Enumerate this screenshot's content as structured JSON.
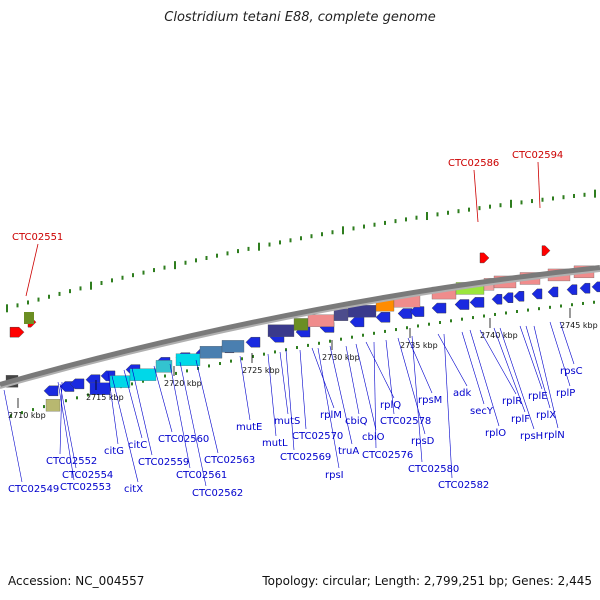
{
  "title": "Clostridium tetani E88, complete genome",
  "accession": "Accession: NC_004557",
  "summary": "Topology: circular; Length: 2,799,251 bp; Genes: 2,445",
  "colors": {
    "backbone": "#808080",
    "tick": "#2e7d1e",
    "highlight": "#cc0000",
    "gene_label": "#0000cc",
    "forward_blue": "#1a2ae0",
    "cyan": "#00d8e8",
    "salmon": "#f08c8c",
    "steel": "#4a7fb0",
    "navy": "#3a3a8c",
    "olive": "#6b8e23",
    "orange": "#ff8c00",
    "lime": "#9be63c"
  },
  "scale_labels": [
    "2710 kbp",
    "2715 kbp",
    "2720 kbp",
    "2725 kbp",
    "2730 kbp",
    "2735 kbp",
    "2740 kbp",
    "2745 kbp"
  ],
  "highlighted_labels": [
    "CTC02551",
    "CTC02586",
    "CTC02594"
  ],
  "gene_labels": [
    "CTC02549",
    "CTC02552",
    "CTC02554",
    "CTC02553",
    "citG",
    "citC",
    "citX",
    "CTC02559",
    "CTC02560",
    "CTC02561",
    "CTC02562",
    "CTC02563",
    "mutE",
    "mutL",
    "mutS",
    "CTC02569",
    "CTC02570",
    "rplM",
    "rpsI",
    "truA",
    "cbiQ",
    "cbiO",
    "rplQ",
    "CTC02576",
    "CTC02578",
    "rpsD",
    "rpsM",
    "CTC02580",
    "adk",
    "CTC02582",
    "secY",
    "rplO",
    "rplR",
    "rplF",
    "rpsH",
    "rplE",
    "rplX",
    "rplN",
    "rplP",
    "rpsC"
  ]
}
